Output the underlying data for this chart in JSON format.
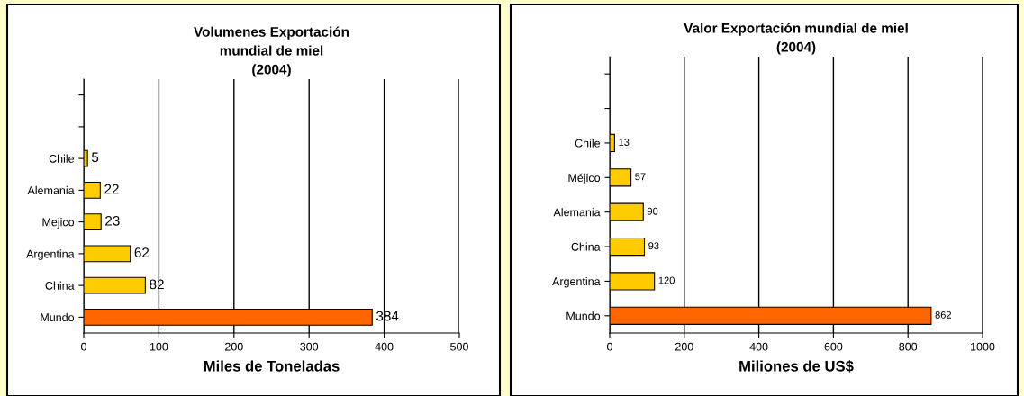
{
  "chart_data": [
    {
      "type": "bar",
      "orientation": "horizontal",
      "title": "Volumenes Exportación\nmundial de miel\n(2004)",
      "xlabel": "Miles de Toneladas",
      "categories": [
        null,
        null,
        "Chile",
        "Alemania",
        "Mejico",
        "Argentina",
        "China",
        "Mundo"
      ],
      "values": [
        null,
        null,
        5,
        22,
        23,
        62,
        82,
        384
      ],
      "colors": [
        null,
        null,
        "#ffcc00",
        "#ffcc00",
        "#ffcc00",
        "#ffcc00",
        "#ffcc00",
        "#ff6600"
      ],
      "xlim": [
        0,
        500
      ],
      "xticks": [
        0,
        100,
        200,
        300,
        400,
        500
      ],
      "grid": "x",
      "data_labels": true
    },
    {
      "type": "bar",
      "orientation": "horizontal",
      "title": "Valor Exportación mundial de miel\n(2004)",
      "xlabel": "Miliones de US$",
      "categories": [
        null,
        null,
        "Chile",
        "Méjico",
        "Alemania",
        "China",
        "Argentina",
        "Mundo"
      ],
      "values": [
        null,
        null,
        13,
        57,
        90,
        93,
        120,
        862
      ],
      "colors": [
        null,
        null,
        "#ffcc00",
        "#ffcc00",
        "#ffcc00",
        "#ffcc00",
        "#ffcc00",
        "#ff6600"
      ],
      "xlim": [
        0,
        1000
      ],
      "xticks": [
        0,
        200,
        400,
        600,
        800,
        1000
      ],
      "grid": "x",
      "data_labels": true
    }
  ]
}
